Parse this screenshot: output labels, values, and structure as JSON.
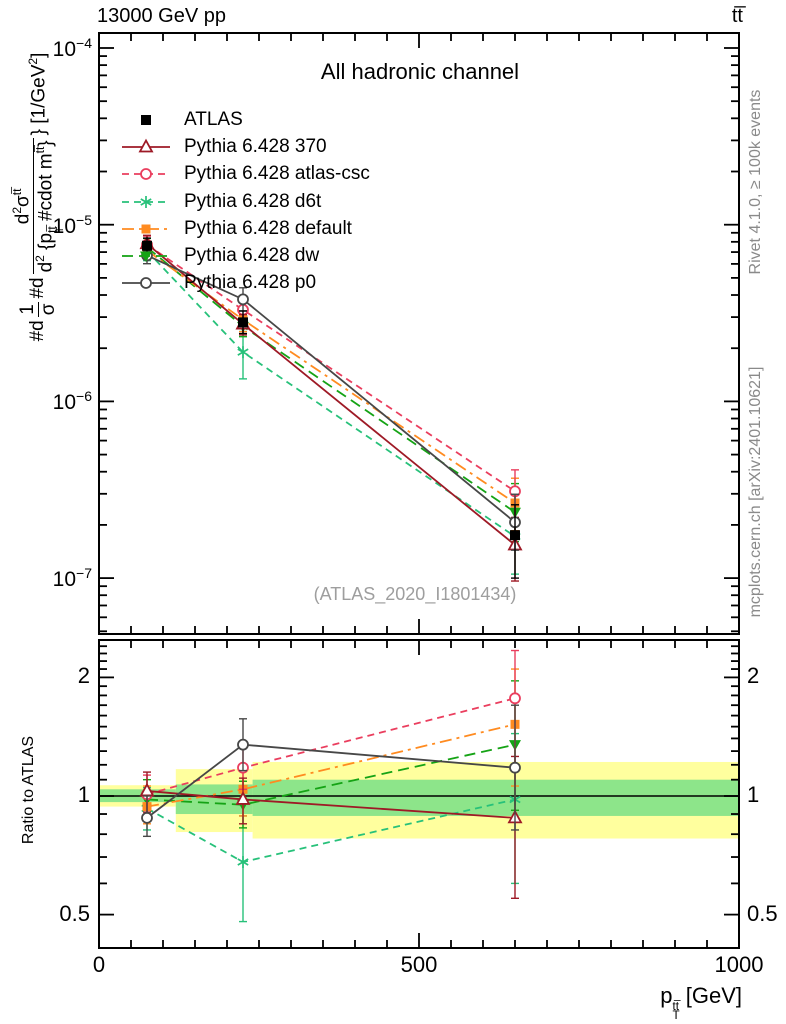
{
  "header": {
    "left": "13000 GeV pp",
    "right": "tt̅"
  },
  "title": "All hadronic channel",
  "watermark": "(ATLAS_2020_I1801434)",
  "side_notes": {
    "top": "Rivet 4.1.0, ≥ 100k events",
    "bottom": "mcplots.cern.ch [arXiv:2401.10621]"
  },
  "axes": {
    "x": {
      "title_main": "p",
      "title_sub": "T",
      "title_sup": "tt̅",
      "title_unit": " [GeV]",
      "min": 0,
      "max": 1000,
      "minor_step": 50,
      "ticks": [
        {
          "label": "0",
          "value": 0
        },
        {
          "label": "500",
          "value": 500
        },
        {
          "label": "1000",
          "value": 1000
        }
      ]
    },
    "y_main": {
      "ticks": [
        {
          "base": "10",
          "exp": "−4",
          "value": 0.0001
        },
        {
          "base": "10",
          "exp": "−5",
          "value": 1e-05
        },
        {
          "base": "10",
          "exp": "−6",
          "value": 1e-06
        },
        {
          "base": "10",
          "exp": "−7",
          "value": 1e-07
        }
      ]
    },
    "y_ratio": {
      "label": "Ratio to ATLAS",
      "ticks": [
        {
          "label": "2",
          "value": 2
        },
        {
          "label": "1",
          "value": 1
        },
        {
          "label": "0.5",
          "value": 0.5
        }
      ]
    }
  },
  "ylabel_parts": {
    "p1": "#d",
    "f1num": "1",
    "f1den": "σ",
    "p2": "#d",
    "f2num_main": "d",
    "f2num_exp": "2",
    "f2num_sigma": "σ",
    "f2num_sup": "tt̅",
    "f2den_main": "d",
    "f2den_exp": "2",
    "f2den_rest": " {p",
    "f2den_sub": "T",
    "f2den_sup": "tt̅",
    "f2den_mid": " #cdot m",
    "f2den_sup2": "tt̅",
    "f2den_close": "}",
    "tail": "} [1/GeV",
    "tail_exp": "2",
    "tail_close": "]"
  },
  "chart_data": [
    {
      "type": "line",
      "subplot": "main",
      "title": "All hadronic channel",
      "xlabel": "pT(ttbar) [GeV]",
      "ylabel": "#d 1/sigma #d d2sigma / d2{pT(ttbar) #cdot m(ttbar)} [1/GeV2]",
      "ylog": true,
      "xlim": [
        0,
        1000
      ],
      "ylim": [
        4.8e-08,
        0.000122
      ],
      "x": [
        75,
        225,
        650
      ],
      "series": [
        {
          "name": "ATLAS",
          "label": "ATLAS",
          "color": "#000000",
          "marker": "square",
          "line": "none",
          "values": [
            7.6e-06,
            2.8e-06,
            1.75e-07
          ],
          "err": [
            [
              6.9e-06,
              8.4e-06
            ],
            [
              2.42e-06,
              3.25e-06
            ],
            [
              1e-07,
              2.6e-07
            ]
          ]
        },
        {
          "name": "pythia-370",
          "label": "Pythia 6.428 370",
          "color": "#9e1a26",
          "marker": "triangle-open",
          "line": "solid",
          "values": [
            7.8e-06,
            2.74e-06,
            1.54e-07
          ]
        },
        {
          "name": "pythia-atlas-csc",
          "label": "Pythia 6.428 atlas-csc",
          "color": "#ea3e5e",
          "marker": "circle-open",
          "line": "dashed",
          "values": [
            7.7e-06,
            3.3e-06,
            3.1e-07
          ]
        },
        {
          "name": "pythia-d6t",
          "label": "Pythia 6.428 d6t",
          "color": "#27c17a",
          "marker": "asterisk",
          "line": "dashed",
          "values": [
            7.1e-06,
            1.9e-06,
            1.72e-07
          ]
        },
        {
          "name": "pythia-default",
          "label": "Pythia 6.428 default",
          "color": "#ff8b20",
          "marker": "square-filled",
          "line": "dashdot",
          "values": [
            7.15e-06,
            2.9e-06,
            2.66e-07
          ]
        },
        {
          "name": "pythia-dw",
          "label": "Pythia 6.428 dw",
          "color": "#15a315",
          "marker": "triangle-down",
          "line": "dashed-long",
          "values": [
            7.45e-06,
            2.66e-06,
            2.36e-07
          ]
        },
        {
          "name": "pythia-p0",
          "label": "Pythia 6.428 p0",
          "color": "#474747",
          "marker": "circle-open",
          "line": "solid",
          "values": [
            6.7e-06,
            3.78e-06,
            2.07e-07
          ]
        }
      ]
    },
    {
      "type": "line",
      "subplot": "ratio",
      "ylabel": "Ratio to ATLAS",
      "ylog": true,
      "xlim": [
        0,
        1000
      ],
      "ylim": [
        0.41,
        2.49
      ],
      "x": [
        75,
        225,
        650
      ],
      "series": [
        {
          "name": "pythia-370",
          "ratio": [
            1.03,
            0.98,
            0.88
          ],
          "err": [
            [
              0.91,
              1.15
            ],
            [
              0.85,
              1.11
            ],
            [
              0.55,
              1.26
            ]
          ]
        },
        {
          "name": "pythia-atlas-csc",
          "ratio": [
            1.01,
            1.18,
            1.77
          ],
          "err": [
            [
              0.9,
              1.13
            ],
            [
              1.04,
              1.34
            ],
            [
              1.2,
              2.34
            ]
          ]
        },
        {
          "name": "pythia-d6t",
          "ratio": [
            0.93,
            0.68,
            0.98
          ],
          "err": [
            [
              0.82,
              1.05
            ],
            [
              0.48,
              0.89
            ],
            [
              0.6,
              1.44
            ]
          ]
        },
        {
          "name": "pythia-default",
          "ratio": [
            0.94,
            1.04,
            1.52
          ],
          "err": [
            [
              0.85,
              1.06
            ],
            [
              0.89,
              1.2
            ],
            [
              1.06,
              2.1
            ]
          ]
        },
        {
          "name": "pythia-dw",
          "ratio": [
            0.98,
            0.95,
            1.35
          ],
          "err": [
            [
              0.87,
              1.1
            ],
            [
              0.83,
              1.09
            ],
            [
              0.92,
              1.96
            ]
          ]
        },
        {
          "name": "pythia-p0",
          "ratio": [
            0.88,
            1.35,
            1.18
          ],
          "err": [
            [
              0.79,
              1.0
            ],
            [
              1.16,
              1.57
            ],
            [
              0.82,
              1.7
            ]
          ]
        }
      ],
      "bands": {
        "green_color": "#8de58a",
        "yellow_color": "#ffff9e",
        "segments": [
          {
            "x": [
              0,
              120
            ],
            "green": [
              0.965,
              1.04
            ],
            "yellow": [
              0.94,
              1.065
            ]
          },
          {
            "x": [
              120,
              240
            ],
            "green": [
              0.9,
              1.07
            ],
            "yellow": [
              0.81,
              1.17
            ]
          },
          {
            "x": [
              240,
              1000
            ],
            "green": [
              0.89,
              1.1
            ],
            "yellow": [
              0.78,
              1.22
            ]
          }
        ]
      }
    }
  ]
}
